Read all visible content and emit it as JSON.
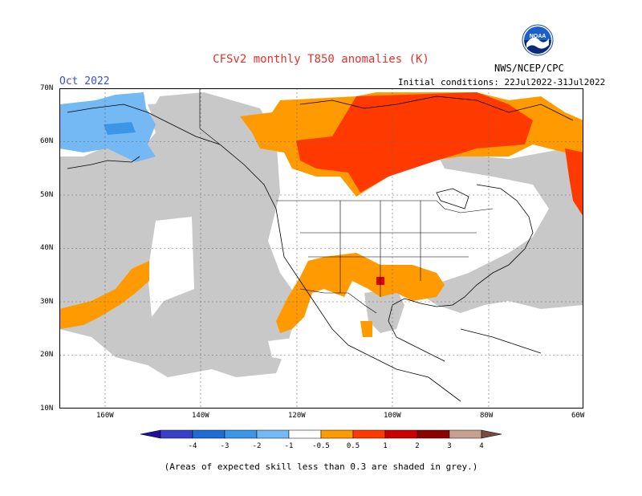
{
  "title": "CFSv2 monthly T850 anomalies (K)",
  "month": "Oct 2022",
  "initial_conditions": "Initial conditions: 22Jul2022-31Jul2022",
  "agency": "NWS/NCEP/CPC",
  "logo_text": "NOAA",
  "y_labels": [
    "70N",
    "60N",
    "50N",
    "40N",
    "30N",
    "20N",
    "10N"
  ],
  "x_labels": [
    "160W",
    "140W",
    "120W",
    "100W",
    "80W",
    "60W"
  ],
  "colorbar": {
    "tick_labels": [
      "-4",
      "-3",
      "-2",
      "-1",
      "-0.5",
      "0.5",
      "1",
      "2",
      "3",
      "4"
    ],
    "colors": [
      "#2010a0",
      "#3a3fc8",
      "#1e6cd6",
      "#3b96e8",
      "#74b8f4",
      "#ffffff",
      "#ff9a00",
      "#ff3a00",
      "#cc0000",
      "#8c0000",
      "#c8a090",
      "#7a4a40"
    ]
  },
  "colors": {
    "grey_low_skill": "#c8c8c8",
    "orange": "#ff9a00",
    "red_orange": "#ff3a00",
    "red": "#e00000",
    "light_blue": "#74b8f4",
    "blue": "#3b96e8"
  },
  "note": "(Areas of expected skill less than 0.3 are shaded in grey.)"
}
